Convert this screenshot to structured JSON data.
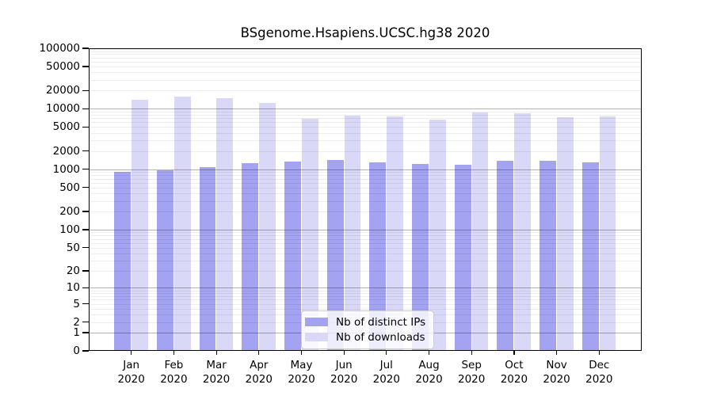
{
  "chart_data": {
    "type": "bar",
    "title": "BSgenome.Hsapiens.UCSC.hg38 2020",
    "categories": [
      "Jan",
      "Feb",
      "Mar",
      "Apr",
      "May",
      "Jun",
      "Jul",
      "Aug",
      "Sep",
      "Oct",
      "Nov",
      "Dec"
    ],
    "category_year": "2020",
    "series": [
      {
        "name": "Nb of distinct IPs",
        "color": "#a3a3f2",
        "values": [
          900,
          970,
          1100,
          1250,
          1340,
          1410,
          1300,
          1240,
          1200,
          1370,
          1400,
          1310
        ]
      },
      {
        "name": "Nb of downloads",
        "color": "#d9d9f7",
        "values": [
          14000,
          15700,
          15000,
          12400,
          6800,
          7700,
          7600,
          6700,
          8800,
          8400,
          7200,
          7400
        ]
      }
    ],
    "xlabel": "",
    "ylabel": "",
    "ylim": [
      0,
      100000
    ],
    "y_scale": "log1p",
    "y_tick_values": [
      0,
      1,
      2,
      5,
      10,
      20,
      50,
      100,
      200,
      500,
      1000,
      2000,
      5000,
      10000,
      20000,
      50000,
      100000
    ],
    "y_tick_labels": [
      "0",
      "1",
      "2",
      "5",
      "10",
      "20",
      "50",
      "100",
      "200",
      "500",
      "1000",
      "2000",
      "5000",
      "10000",
      "20000",
      "50000",
      "100000"
    ],
    "grid": true,
    "legend_position": "bottom-center"
  }
}
